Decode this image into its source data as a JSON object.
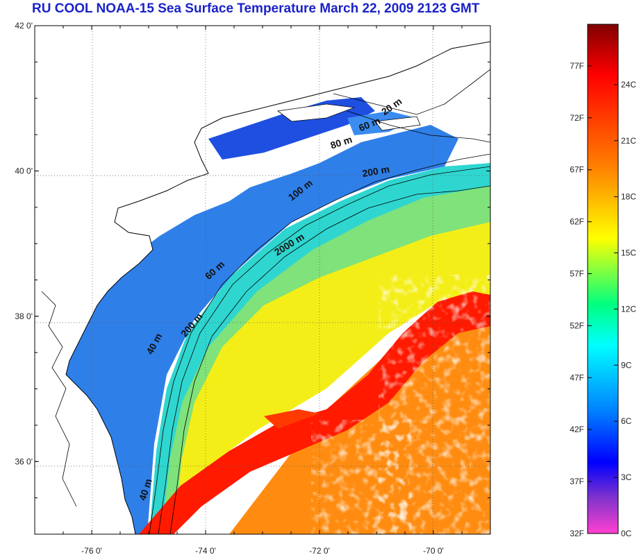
{
  "title": "RU COOL  NOAA-15 Sea Surface Temperature March 22, 2009 2123 GMT",
  "lat_ticks": [
    {
      "lat": 42,
      "label": "42 0'"
    },
    {
      "lat": 40,
      "label": "40 0'"
    },
    {
      "lat": 38,
      "label": "38 0'"
    },
    {
      "lat": 36,
      "label": "36 0'"
    }
  ],
  "lon_ticks": [
    {
      "lon": -76,
      "label": "-76 0'"
    },
    {
      "lon": -74,
      "label": "-74 0'"
    },
    {
      "lon": -72,
      "label": "-72 0'"
    },
    {
      "lon": -70,
      "label": "-70 0'"
    }
  ],
  "isobath_labels": [
    {
      "text": "20 m",
      "lon": -70.7,
      "lat": 40.85,
      "rotate": -35
    },
    {
      "text": "60 m",
      "lon": -71.1,
      "lat": 40.6,
      "rotate": -22
    },
    {
      "text": "80 m",
      "lon": -71.6,
      "lat": 40.35,
      "rotate": -18
    },
    {
      "text": "200 m",
      "lon": -71.0,
      "lat": 39.95,
      "rotate": -10
    },
    {
      "text": "100 m",
      "lon": -72.3,
      "lat": 39.7,
      "rotate": -38
    },
    {
      "text": "2000 m",
      "lon": -72.5,
      "lat": 38.95,
      "rotate": -32
    },
    {
      "text": "60 m",
      "lon": -73.8,
      "lat": 38.6,
      "rotate": -42
    },
    {
      "text": "200 m",
      "lon": -74.2,
      "lat": 37.85,
      "rotate": -50
    },
    {
      "text": "40 m",
      "lon": -74.85,
      "lat": 37.6,
      "rotate": -62
    },
    {
      "text": "40 m",
      "lon": -75.0,
      "lat": 35.6,
      "rotate": -72
    }
  ],
  "colorbar": {
    "fahrenheit": [
      "77F",
      "72F",
      "67F",
      "62F",
      "57F",
      "52F",
      "47F",
      "42F",
      "37F",
      "32F"
    ],
    "celsius": [
      "24C",
      "21C",
      "18C",
      "15C",
      "12C",
      "9C",
      "6C",
      "3C",
      "0C"
    ],
    "colors": {
      "top": "#800000",
      "red": "#ff0000",
      "orange": "#ff8000",
      "yellow": "#ffff00",
      "cyan": "#00ffff",
      "blue": "#0000ff",
      "violet": "#8033cc",
      "pink": "#ff40d0"
    }
  }
}
